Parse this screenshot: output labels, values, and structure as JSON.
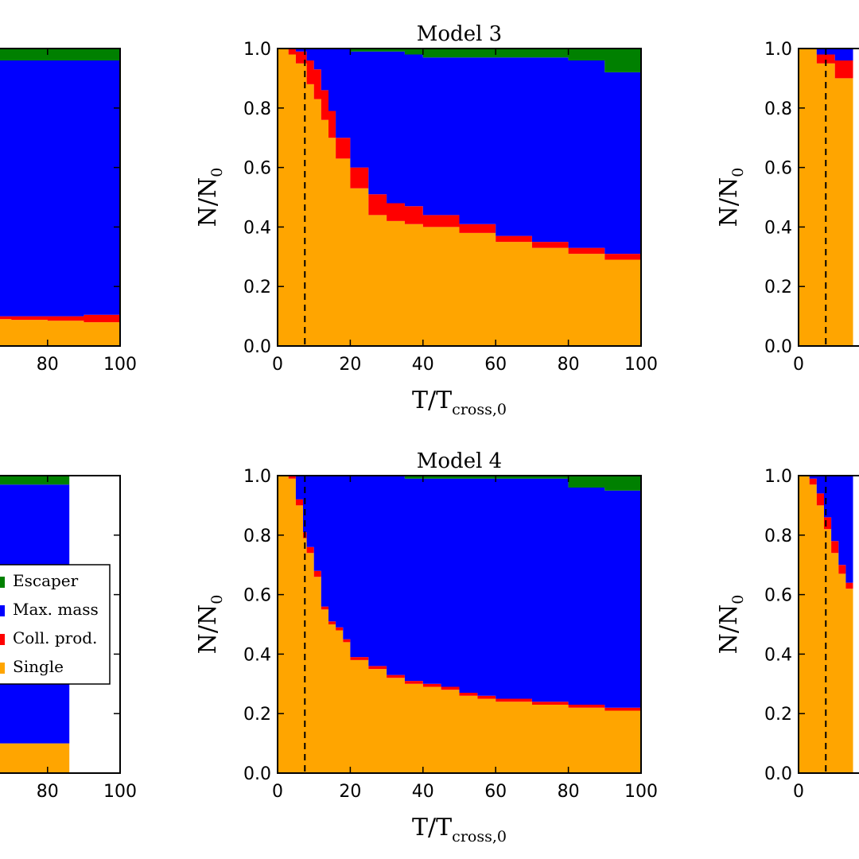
{
  "colors": {
    "Single": "#ffa500",
    "Coll. prod.": "#ff0000",
    "Max. mass": "#0000ff",
    "Escaper": "#008000"
  },
  "legend": {
    "entries": [
      "Escaper",
      "Max. mass",
      "Coll. prod.",
      "Single"
    ]
  },
  "chart_data": [
    {
      "id": "left-top",
      "type": "area",
      "stacked": true,
      "title": "",
      "xlabel": "",
      "ylabel": "",
      "xlim": [
        0,
        100
      ],
      "ylim": [
        0,
        1
      ],
      "xticks": [
        "80",
        "100"
      ],
      "yticks": [],
      "vline_x": null,
      "x": [
        60,
        70,
        80,
        90,
        100
      ],
      "series": [
        {
          "name": "Single",
          "values": [
            0.09,
            0.088,
            0.085,
            0.08,
            0.045
          ]
        },
        {
          "name": "Coll. prod.",
          "values": [
            0.01,
            0.012,
            0.015,
            0.025,
            0.03
          ]
        },
        {
          "name": "Max. mass",
          "values": [
            0.86,
            0.86,
            0.86,
            0.855,
            0.885
          ]
        },
        {
          "name": "Escaper",
          "values": [
            0.04,
            0.04,
            0.04,
            0.04,
            0.04
          ]
        }
      ]
    },
    {
      "id": "model-3",
      "type": "area",
      "stacked": true,
      "title": "Model 3",
      "xlabel": "T/T",
      "xlabel_sub": "cross,0",
      "ylabel": "N/N",
      "ylabel_sub": "0",
      "xlim": [
        0,
        100
      ],
      "ylim": [
        0,
        1
      ],
      "xticks": [
        "0",
        "20",
        "40",
        "60",
        "80",
        "100"
      ],
      "yticks": [
        "0.0",
        "0.2",
        "0.4",
        "0.6",
        "0.8",
        "1.0"
      ],
      "vline_x": 7.5,
      "x": [
        0,
        3,
        5,
        8,
        10,
        12,
        14,
        16,
        20,
        25,
        30,
        35,
        40,
        50,
        60,
        70,
        80,
        90,
        100
      ],
      "series": [
        {
          "name": "Single",
          "values": [
            1.0,
            0.98,
            0.95,
            0.88,
            0.83,
            0.76,
            0.7,
            0.63,
            0.53,
            0.44,
            0.42,
            0.41,
            0.4,
            0.38,
            0.35,
            0.33,
            0.31,
            0.29,
            0.27
          ]
        },
        {
          "name": "Coll. prod.",
          "values": [
            0.0,
            0.02,
            0.04,
            0.08,
            0.1,
            0.1,
            0.09,
            0.07,
            0.07,
            0.07,
            0.06,
            0.06,
            0.04,
            0.03,
            0.02,
            0.02,
            0.02,
            0.02,
            0.02
          ]
        },
        {
          "name": "Max. mass",
          "values": [
            0.0,
            0.0,
            0.01,
            0.04,
            0.07,
            0.14,
            0.21,
            0.3,
            0.39,
            0.48,
            0.51,
            0.51,
            0.53,
            0.56,
            0.6,
            0.62,
            0.63,
            0.61,
            0.63
          ]
        },
        {
          "name": "Escaper",
          "values": [
            0.0,
            0.0,
            0.0,
            0.0,
            0.0,
            0.0,
            0.0,
            0.0,
            0.01,
            0.01,
            0.01,
            0.02,
            0.03,
            0.03,
            0.03,
            0.03,
            0.04,
            0.08,
            0.08
          ]
        }
      ]
    },
    {
      "id": "right-top",
      "type": "area",
      "stacked": true,
      "title": "",
      "xlabel": "",
      "ylabel": "N/N",
      "ylabel_sub": "0",
      "xlim": [
        0,
        100
      ],
      "ylim": [
        0,
        1
      ],
      "xticks": [
        "0"
      ],
      "yticks": [
        "0.0",
        "0.2",
        "0.4",
        "0.6",
        "0.8",
        "1.0"
      ],
      "vline_x": 7.5,
      "x": [
        0,
        5,
        10,
        15
      ],
      "series": [
        {
          "name": "Single",
          "values": [
            1.0,
            0.95,
            0.9,
            0.89
          ]
        },
        {
          "name": "Coll. prod.",
          "values": [
            0.0,
            0.03,
            0.06,
            0.05
          ]
        },
        {
          "name": "Max. mass",
          "values": [
            0.0,
            0.02,
            0.04,
            0.06
          ]
        },
        {
          "name": "Escaper",
          "values": [
            0.0,
            0.0,
            0.0,
            0.0
          ]
        }
      ]
    },
    {
      "id": "left-bottom",
      "type": "area",
      "stacked": true,
      "title": "",
      "xlabel": "",
      "ylabel": "",
      "xlim": [
        0,
        100
      ],
      "ylim": [
        0,
        1
      ],
      "xticks": [
        "80",
        "100"
      ],
      "yticks": [],
      "vline_x": null,
      "x": [
        60,
        70,
        80,
        86
      ],
      "series": [
        {
          "name": "Single",
          "values": [
            0.1,
            0.1,
            0.1,
            0.1
          ]
        },
        {
          "name": "Coll. prod.",
          "values": [
            0.0,
            0.0,
            0.0,
            0.0
          ]
        },
        {
          "name": "Max. mass",
          "values": [
            0.87,
            0.87,
            0.87,
            0.87
          ]
        },
        {
          "name": "Escaper",
          "values": [
            0.03,
            0.03,
            0.03,
            0.03
          ]
        }
      ]
    },
    {
      "id": "model-4",
      "type": "area",
      "stacked": true,
      "title": "Model 4",
      "xlabel": "T/T",
      "xlabel_sub": "cross,0",
      "ylabel": "N/N",
      "ylabel_sub": "0",
      "xlim": [
        0,
        100
      ],
      "ylim": [
        0,
        1
      ],
      "xticks": [
        "0",
        "20",
        "40",
        "60",
        "80",
        "100"
      ],
      "yticks": [
        "0.0",
        "0.2",
        "0.4",
        "0.6",
        "0.8",
        "1.0"
      ],
      "vline_x": 7.5,
      "x": [
        0,
        3,
        5,
        7,
        8,
        10,
        12,
        14,
        16,
        18,
        20,
        25,
        30,
        35,
        40,
        45,
        50,
        55,
        60,
        70,
        80,
        90,
        100
      ],
      "series": [
        {
          "name": "Single",
          "values": [
            1.0,
            0.99,
            0.9,
            0.79,
            0.74,
            0.66,
            0.55,
            0.5,
            0.48,
            0.44,
            0.38,
            0.35,
            0.32,
            0.3,
            0.29,
            0.28,
            0.26,
            0.25,
            0.24,
            0.23,
            0.22,
            0.21,
            0.2
          ]
        },
        {
          "name": "Coll. prod.",
          "values": [
            0.0,
            0.01,
            0.02,
            0.02,
            0.02,
            0.02,
            0.01,
            0.01,
            0.01,
            0.01,
            0.01,
            0.01,
            0.01,
            0.01,
            0.01,
            0.01,
            0.01,
            0.01,
            0.01,
            0.01,
            0.01,
            0.01,
            0.01
          ]
        },
        {
          "name": "Max. mass",
          "values": [
            0.0,
            0.0,
            0.08,
            0.19,
            0.24,
            0.32,
            0.44,
            0.49,
            0.51,
            0.55,
            0.61,
            0.64,
            0.67,
            0.68,
            0.69,
            0.7,
            0.72,
            0.73,
            0.74,
            0.75,
            0.73,
            0.73,
            0.74
          ]
        },
        {
          "name": "Escaper",
          "values": [
            0.0,
            0.0,
            0.0,
            0.0,
            0.0,
            0.0,
            0.0,
            0.0,
            0.0,
            0.0,
            0.0,
            0.0,
            0.0,
            0.01,
            0.01,
            0.01,
            0.01,
            0.01,
            0.01,
            0.01,
            0.04,
            0.05,
            0.05
          ]
        }
      ]
    },
    {
      "id": "right-bottom",
      "type": "area",
      "stacked": true,
      "title": "",
      "xlabel": "",
      "ylabel": "N/N",
      "ylabel_sub": "0",
      "xlim": [
        0,
        100
      ],
      "ylim": [
        0,
        1
      ],
      "xticks": [
        "0"
      ],
      "yticks": [
        "0.0",
        "0.2",
        "0.4",
        "0.6",
        "0.8",
        "1.0"
      ],
      "vline_x": 7.5,
      "x": [
        0,
        3,
        5,
        7,
        9,
        11,
        13,
        15
      ],
      "series": [
        {
          "name": "Single",
          "values": [
            1.0,
            0.97,
            0.9,
            0.82,
            0.74,
            0.67,
            0.62,
            0.59
          ]
        },
        {
          "name": "Coll. prod.",
          "values": [
            0.0,
            0.02,
            0.04,
            0.04,
            0.04,
            0.03,
            0.02,
            0.02
          ]
        },
        {
          "name": "Max. mass",
          "values": [
            0.0,
            0.01,
            0.06,
            0.14,
            0.22,
            0.3,
            0.36,
            0.39
          ]
        },
        {
          "name": "Escaper",
          "values": [
            0.0,
            0.0,
            0.0,
            0.0,
            0.0,
            0.0,
            0.0,
            0.0
          ]
        }
      ]
    }
  ]
}
